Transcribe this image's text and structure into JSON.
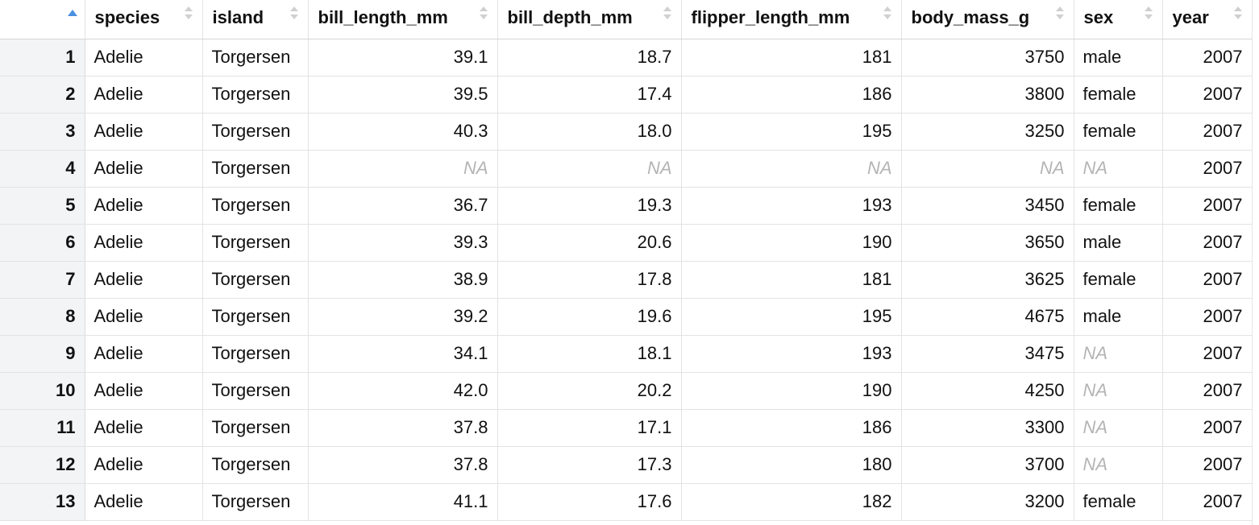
{
  "columns": [
    {
      "key": "species",
      "label": "species",
      "align": "left"
    },
    {
      "key": "island",
      "label": "island",
      "align": "left"
    },
    {
      "key": "bill_length_mm",
      "label": "bill_length_mm",
      "align": "right"
    },
    {
      "key": "bill_depth_mm",
      "label": "bill_depth_mm",
      "align": "right"
    },
    {
      "key": "flipper_length_mm",
      "label": "flipper_length_mm",
      "align": "right"
    },
    {
      "key": "body_mass_g",
      "label": "body_mass_g",
      "align": "right"
    },
    {
      "key": "sex",
      "label": "sex",
      "align": "left"
    },
    {
      "key": "year",
      "label": "year",
      "align": "right"
    }
  ],
  "sort_state": {
    "column": "row-number",
    "direction": "ascending",
    "icon": "sort-ascending-icon",
    "active_color": "#4a90e2"
  },
  "rows": [
    {
      "n": "1",
      "cells": [
        "Adelie",
        "Torgersen",
        "39.1",
        "18.7",
        "181",
        "3750",
        "male",
        "2007"
      ]
    },
    {
      "n": "2",
      "cells": [
        "Adelie",
        "Torgersen",
        "39.5",
        "17.4",
        "186",
        "3800",
        "female",
        "2007"
      ]
    },
    {
      "n": "3",
      "cells": [
        "Adelie",
        "Torgersen",
        "40.3",
        "18.0",
        "195",
        "3250",
        "female",
        "2007"
      ]
    },
    {
      "n": "4",
      "cells": [
        "Adelie",
        "Torgersen",
        "NA",
        "NA",
        "NA",
        "NA",
        "NA",
        "2007"
      ]
    },
    {
      "n": "5",
      "cells": [
        "Adelie",
        "Torgersen",
        "36.7",
        "19.3",
        "193",
        "3450",
        "female",
        "2007"
      ]
    },
    {
      "n": "6",
      "cells": [
        "Adelie",
        "Torgersen",
        "39.3",
        "20.6",
        "190",
        "3650",
        "male",
        "2007"
      ]
    },
    {
      "n": "7",
      "cells": [
        "Adelie",
        "Torgersen",
        "38.9",
        "17.8",
        "181",
        "3625",
        "female",
        "2007"
      ]
    },
    {
      "n": "8",
      "cells": [
        "Adelie",
        "Torgersen",
        "39.2",
        "19.6",
        "195",
        "4675",
        "male",
        "2007"
      ]
    },
    {
      "n": "9",
      "cells": [
        "Adelie",
        "Torgersen",
        "34.1",
        "18.1",
        "193",
        "3475",
        "NA",
        "2007"
      ]
    },
    {
      "n": "10",
      "cells": [
        "Adelie",
        "Torgersen",
        "42.0",
        "20.2",
        "190",
        "4250",
        "NA",
        "2007"
      ]
    },
    {
      "n": "11",
      "cells": [
        "Adelie",
        "Torgersen",
        "37.8",
        "17.1",
        "186",
        "3300",
        "NA",
        "2007"
      ]
    },
    {
      "n": "12",
      "cells": [
        "Adelie",
        "Torgersen",
        "37.8",
        "17.3",
        "180",
        "3700",
        "NA",
        "2007"
      ]
    },
    {
      "n": "13",
      "cells": [
        "Adelie",
        "Torgersen",
        "41.1",
        "17.6",
        "182",
        "3200",
        "female",
        "2007"
      ]
    }
  ],
  "na_color": "#b4b4b4",
  "row_number_bg": "#f2f4f6"
}
